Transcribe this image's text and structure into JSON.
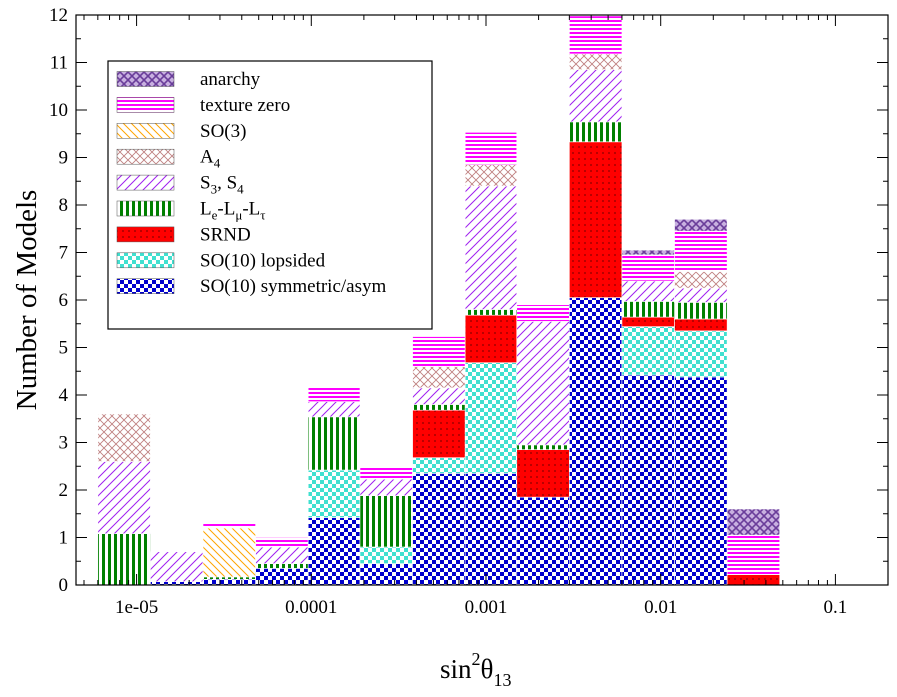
{
  "chart_data": {
    "type": "bar",
    "subtype": "stacked-histogram",
    "xscale": "log",
    "xlabel": {
      "base": "sin",
      "sup": "2",
      "theta": "θ",
      "sub": "13"
    },
    "ylabel": "Number of Models",
    "xlim": [
      4.5e-06,
      0.2
    ],
    "ylim": [
      0,
      12
    ],
    "y_ticks": [
      "0",
      "1",
      "2",
      "3",
      "4",
      "5",
      "6",
      "7",
      "8",
      "9",
      "10",
      "11",
      "12"
    ],
    "x_ticks": [
      {
        "value": 1e-05,
        "label": "1e-05"
      },
      {
        "value": 0.0001,
        "label": "0.0001"
      },
      {
        "value": 0.001,
        "label": "0.001"
      },
      {
        "value": 0.01,
        "label": "0.01"
      },
      {
        "value": 0.1,
        "label": "0.1"
      }
    ],
    "bin_edges": [
      6e-06,
      1.2e-05,
      2.4e-05,
      4.8e-05,
      9.6e-05,
      0.00019,
      0.00038,
      0.00076,
      0.0015,
      0.003,
      0.006,
      0.012,
      0.024,
      0.048,
      0.096
    ],
    "series": [
      {
        "name": "SO(10) symmetric/asym",
        "pattern": "check",
        "values": [
          0,
          0.07,
          0.12,
          0.35,
          1.42,
          0.45,
          2.35,
          2.35,
          1.85,
          6.05,
          4.42,
          4.38,
          0
        ]
      },
      {
        "name": "SO(10) lopsided",
        "pattern": "tcheck",
        "values": [
          0,
          0,
          0,
          0,
          1.0,
          0.35,
          0.33,
          2.33,
          0,
          0,
          1.02,
          0.97,
          0
        ]
      },
      {
        "name": "SRND",
        "pattern": "red",
        "values": [
          0,
          0,
          0,
          0,
          0,
          0,
          1.0,
          1.0,
          1.0,
          3.28,
          0.2,
          0.25,
          0.22
        ]
      },
      {
        "name": "Le-Lμ-Lτ",
        "pattern": "vlines",
        "values": [
          1.08,
          0,
          0.05,
          0.1,
          1.12,
          1.08,
          0.12,
          0.12,
          0.1,
          0.42,
          0.33,
          0.35,
          0
        ]
      },
      {
        "name": "S3, S4",
        "pattern": "diag",
        "values": [
          1.52,
          0.63,
          0,
          0.35,
          0.32,
          0.35,
          0.35,
          2.6,
          2.6,
          1.1,
          0.43,
          0.3,
          0
        ]
      },
      {
        "name": "A4",
        "pattern": "cross",
        "values": [
          1.0,
          0,
          0,
          0,
          0,
          0,
          0.45,
          0.45,
          0,
          0.33,
          0,
          0.35,
          0
        ]
      },
      {
        "name": "SO(3)",
        "pattern": "orange",
        "values": [
          0,
          0,
          1.03,
          0,
          0,
          0,
          0,
          0,
          0,
          0,
          0,
          0,
          0
        ]
      },
      {
        "name": "texture zero",
        "pattern": "hlines",
        "values": [
          0,
          0,
          0.13,
          0.2,
          0.3,
          0.25,
          0.63,
          0.68,
          0.35,
          0.8,
          0.55,
          0.85,
          0.83
        ]
      },
      {
        "name": "anarchy",
        "pattern": "tri",
        "values": [
          0,
          0,
          0,
          0,
          0,
          0,
          0,
          0,
          0,
          0,
          0.1,
          0.25,
          0.55
        ]
      }
    ],
    "legend": {
      "placement": "top-left",
      "entries": [
        {
          "main": "anarchy",
          "pattern": "tri"
        },
        {
          "main": "texture zero",
          "pattern": "hlines"
        },
        {
          "main": "SO(3)",
          "pattern": "orange"
        },
        {
          "main": "A",
          "sub": "4",
          "pattern": "cross"
        },
        {
          "main": "S",
          "sub": "3",
          "mid": ", S",
          "sub2": "4",
          "pattern": "diag"
        },
        {
          "main": "L",
          "sub": "e",
          "mid": "-L",
          "sub2": "μ",
          "mid2": "-L",
          "sub3": "τ",
          "pattern": "vlines"
        },
        {
          "main": "SRND",
          "pattern": "red"
        },
        {
          "main": "SO(10) lopsided",
          "pattern": "tcheck"
        },
        {
          "main": "SO(10) symmetric/asym",
          "pattern": "check"
        }
      ]
    },
    "colors": {
      "blue": "#0000cd",
      "turquoise": "#40e0d0",
      "red": "#ff0000",
      "green": "#008000",
      "magenta": "#ff00ff",
      "purple": "#a020f0",
      "orange": "#ffa500",
      "rosy": "#c08080",
      "slateblue": "#6a3d9a"
    }
  }
}
